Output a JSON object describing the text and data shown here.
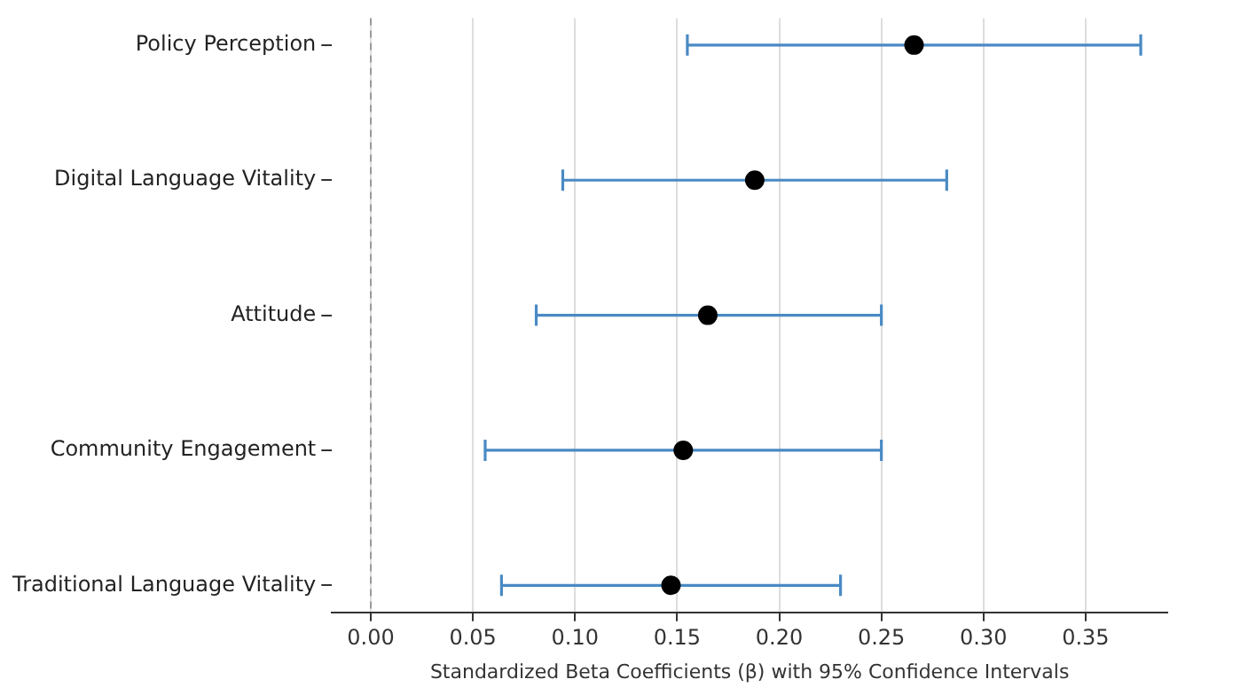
{
  "chart_data": {
    "type": "scatter",
    "orientation": "horizontal",
    "xlabel": "Standardized Beta Coefficients (β) with 95% Confidence Intervals",
    "categories": [
      "Policy Perception",
      "Digital Language Vitality",
      "Attitude",
      "Community Engagement",
      "Traditional Language Vitality"
    ],
    "series": [
      {
        "color": "#000000",
        "values": [
          0.266,
          0.188,
          0.165,
          0.153,
          0.147
        ],
        "errors": [
          [
            0.155,
            0.377
          ],
          [
            0.094,
            0.282
          ],
          [
            0.081,
            0.25
          ],
          [
            0.056,
            0.25
          ],
          [
            0.064,
            0.23
          ]
        ]
      }
    ],
    "xlim": [
      -0.019,
      0.39
    ],
    "xticks": [
      {
        "value": 0,
        "label": "0.00"
      },
      {
        "value": 0.05,
        "label": "0.05"
      },
      {
        "value": 0.1,
        "label": "0.10"
      },
      {
        "value": 0.15,
        "label": "0.15"
      },
      {
        "value": 0.2,
        "label": "0.20"
      },
      {
        "value": 0.25,
        "label": "0.25"
      },
      {
        "value": 0.3,
        "label": "0.30"
      },
      {
        "value": 0.35,
        "label": "0.35"
      }
    ],
    "ref_lines": [
      {
        "axis": "x",
        "value": 0,
        "color": "#999999",
        "line_style": "dashed"
      }
    ],
    "grid": "x",
    "marker": "circle",
    "legend": false
  }
}
